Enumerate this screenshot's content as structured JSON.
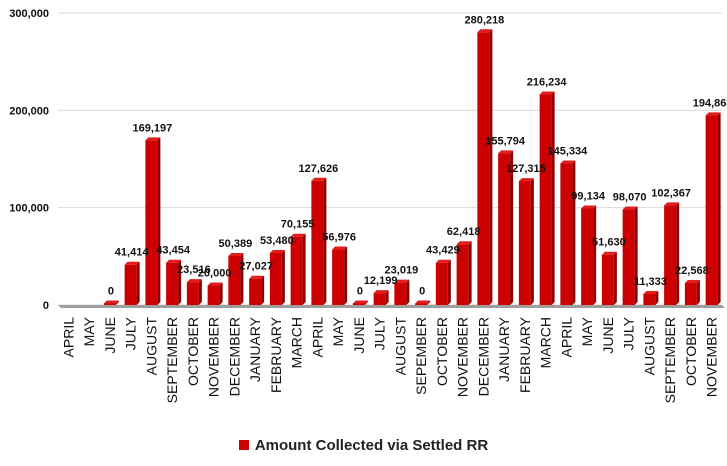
{
  "colors": {
    "bar": "#cc0000",
    "bar_top": "#e21d1d",
    "bar_side": "#8f0000",
    "grid": "#d9d9d9",
    "text": "#111111"
  },
  "chart_data": {
    "type": "bar",
    "title": "",
    "xlabel": "",
    "ylabel": "",
    "ylim": [
      0,
      300000
    ],
    "yticks": [
      0,
      100000,
      200000,
      300000
    ],
    "ytick_labels": [
      "0",
      "100,000",
      "200,000",
      "300,000"
    ],
    "grid": true,
    "legend_position": "bottom",
    "categories": [
      "APRIL",
      "MAY",
      "JUNE",
      "JULY",
      "AUGUST",
      "SEPTEMBER",
      "OCTOBER",
      "NOVEMBER",
      "DECEMBER",
      "JANUARY",
      "FEBRUARY",
      "MARCH",
      "APRIL",
      "MAY",
      "JUNE",
      "JULY",
      "AUGUST",
      "SEPEMBER",
      "OCTOBER",
      "NOVEMBER",
      "DECEMBER",
      "JANUARY",
      "FEBRUARY",
      "MARCH",
      "APRIL",
      "MAY",
      "JUNE",
      "JULY",
      "AUGUST",
      "SEPTEMBER",
      "OCTOBER",
      "NOVEMBER"
    ],
    "series": [
      {
        "name": "Amount Collected via Settled RR",
        "values": [
          null,
          null,
          0,
          41414,
          169197,
          43454,
          23516,
          20000,
          50389,
          27027,
          53480,
          70155,
          127626,
          56976,
          0,
          12199,
          23019,
          0,
          43429,
          62418,
          280218,
          155794,
          127315,
          216234,
          145334,
          99134,
          51630,
          98070,
          11333,
          102367,
          22568,
          194863
        ],
        "data_labels": [
          "",
          "",
          "0",
          "41,414",
          "169,197",
          "43,454",
          "23,516",
          "20,000",
          "50,389",
          "27,027",
          "53,480",
          "70,155",
          "127,626",
          "56,976",
          "0",
          "12,199",
          "23,019",
          "0",
          "43,429",
          "62,418",
          "280,218",
          "155,794",
          "127,315",
          "216,234",
          "145,334",
          "99,134",
          "51,630",
          "98,070",
          "11,333",
          "102,367",
          "22,568",
          "194,863"
        ]
      }
    ]
  }
}
